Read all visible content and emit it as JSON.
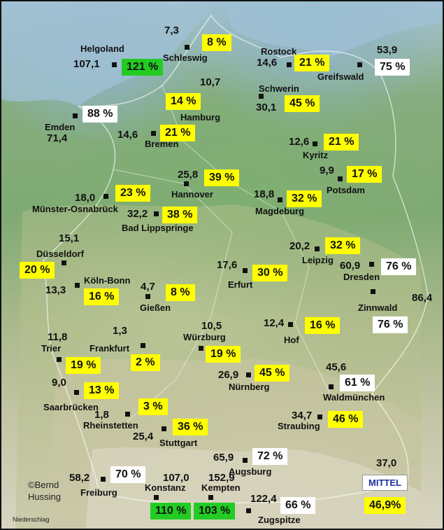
{
  "stations": [
    {
      "name": "Helgoland",
      "value": "107,1",
      "pct": "121 %",
      "color": "green"
    },
    {
      "name": "Schleswig",
      "value": "7,3",
      "pct": "8 %",
      "color": "yellow"
    },
    {
      "name": "Rostock",
      "value": "14,6",
      "pct": "21 %",
      "color": "yellow"
    },
    {
      "name": "Greifswald",
      "value": "53,9",
      "pct": "75 %",
      "color": "white"
    },
    {
      "name": "Emden",
      "value": "71,4",
      "pct": "88 %",
      "color": "white"
    },
    {
      "name": "Hamburg",
      "value": "10,7",
      "pct": "14 %",
      "color": "yellow"
    },
    {
      "name": "Schwerin",
      "value": "30,1",
      "pct": "45 %",
      "color": "yellow"
    },
    {
      "name": "Bremen",
      "value": "14,6",
      "pct": "21 %",
      "color": "yellow"
    },
    {
      "name": "Kyritz",
      "value": "12,6",
      "pct": "21 %",
      "color": "yellow"
    },
    {
      "name": "Hannover",
      "value": "25,8",
      "pct": "39 %",
      "color": "yellow"
    },
    {
      "name": "Potsdam",
      "value": "9,9",
      "pct": "17 %",
      "color": "yellow"
    },
    {
      "name": "Münster-Osnabrück",
      "value": "18,0",
      "pct": "23 %",
      "color": "yellow"
    },
    {
      "name": "Magdeburg",
      "value": "18,8",
      "pct": "32 %",
      "color": "yellow"
    },
    {
      "name": "Bad Lippspringe",
      "value": "32,2",
      "pct": "38 %",
      "color": "yellow"
    },
    {
      "name": "Düsseldorf",
      "value": "15,1",
      "pct": "20 %",
      "color": "yellow"
    },
    {
      "name": "Leipzig",
      "value": "20,2",
      "pct": "32 %",
      "color": "yellow"
    },
    {
      "name": "Erfurt",
      "value": "17,6",
      "pct": "30 %",
      "color": "yellow"
    },
    {
      "name": "Dresden",
      "value": "60,9",
      "pct": "76 %",
      "color": "white"
    },
    {
      "name": "Köln-Bonn",
      "value": "13,3",
      "pct": "16 %",
      "color": "yellow"
    },
    {
      "name": "Gießen",
      "value": "4,7",
      "pct": "8 %",
      "color": "yellow"
    },
    {
      "name": "Zinnwald",
      "value": "86,4",
      "pct": "76 %",
      "color": "white"
    },
    {
      "name": "Hof",
      "value": "12,4",
      "pct": "16 %",
      "color": "yellow"
    },
    {
      "name": "Würzburg",
      "value": "10,5",
      "pct": "19 %",
      "color": "yellow"
    },
    {
      "name": "Frankfurt",
      "value": "1,3",
      "pct": "2 %",
      "color": "yellow"
    },
    {
      "name": "Trier",
      "value": "11,8",
      "pct": "19 %",
      "color": "yellow"
    },
    {
      "name": "Nürnberg",
      "value": "26,9",
      "pct": "45 %",
      "color": "yellow"
    },
    {
      "name": "Waldmünchen",
      "value": "45,6",
      "pct": "61 %",
      "color": "white"
    },
    {
      "name": "Saarbrücken",
      "value": "9,0",
      "pct": "13 %",
      "color": "yellow"
    },
    {
      "name": "Rheinstetten",
      "value": "1,8",
      "pct": "3 %",
      "color": "yellow"
    },
    {
      "name": "Stuttgart",
      "value": "25,4",
      "pct": "36 %",
      "color": "yellow"
    },
    {
      "name": "Straubing",
      "value": "34,7",
      "pct": "46 %",
      "color": "yellow"
    },
    {
      "name": "Augsburg",
      "value": "65,9",
      "pct": "72 %",
      "color": "white"
    },
    {
      "name": "Freiburg",
      "value": "58,2",
      "pct": "70 %",
      "color": "white"
    },
    {
      "name": "Konstanz",
      "value": "107,0",
      "pct": "110 %",
      "color": "green"
    },
    {
      "name": "Kempten",
      "value": "152,9",
      "pct": "103 %",
      "color": "green"
    },
    {
      "name": "Zugspitze",
      "value": "122,4",
      "pct": "66 %",
      "color": "white"
    }
  ],
  "summary": {
    "label": "MITTEL",
    "value": "37,0",
    "pct": "46,9%"
  },
  "credit": {
    "line1": "©Bernd",
    "line2": "Hussing"
  },
  "footer": "Niederschlag",
  "colors": {
    "yellow": "#ffff00",
    "white": "#ffffff",
    "green": "#22cc22",
    "mittel_text": "#1a2f9a"
  }
}
